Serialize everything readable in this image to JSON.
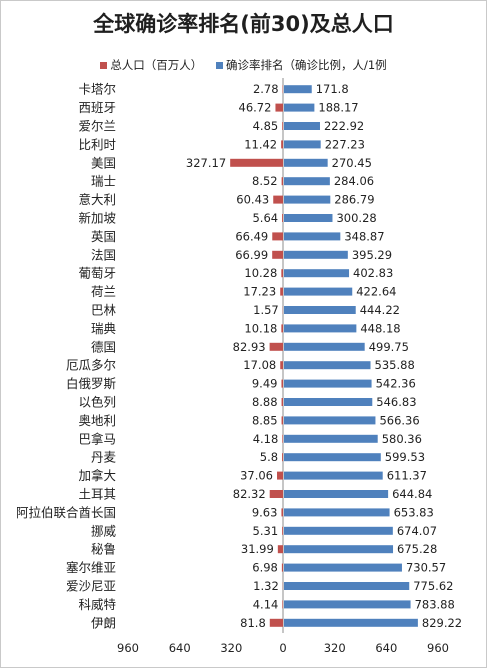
{
  "chart_data": {
    "type": "bar",
    "title": "全球确诊率排名(前30)及总人口",
    "legend": [
      {
        "name": "总人口（百万人）",
        "color": "#c0504d"
      },
      {
        "name": "确诊率排名（确诊比例，人/1例",
        "color": "#4f81bd"
      }
    ],
    "categories": [
      "卡塔尔",
      "西班牙",
      "爱尔兰",
      "比利时",
      "美国",
      "瑞士",
      "意大利",
      "新加坡",
      "英国",
      "法国",
      "葡萄牙",
      "荷兰",
      "巴林",
      "瑞典",
      "德国",
      "厄瓜多尔",
      "白俄罗斯",
      "以色列",
      "奥地利",
      "巴拿马",
      "丹麦",
      "加拿大",
      "土耳其",
      "阿拉伯联合酋长国",
      "挪威",
      "秘鲁",
      "塞尔维亚",
      "爱沙尼亚",
      "科威特",
      "伊朗"
    ],
    "series": [
      {
        "name": "总人口（百万人）",
        "color": "#c0504d",
        "direction": "left",
        "values": [
          2.78,
          46.72,
          4.85,
          11.42,
          327.17,
          8.52,
          60.43,
          5.64,
          66.49,
          66.99,
          10.28,
          17.23,
          1.57,
          10.18,
          82.93,
          17.08,
          9.49,
          8.88,
          8.85,
          4.18,
          5.8,
          37.06,
          82.32,
          9.63,
          5.31,
          31.99,
          6.98,
          1.32,
          4.14,
          81.8
        ]
      },
      {
        "name": "确诊率排名（确诊比例，人/1例",
        "color": "#4f81bd",
        "direction": "right",
        "values": [
          171.8,
          188.17,
          222.92,
          227.23,
          270.45,
          284.06,
          286.79,
          300.28,
          348.87,
          395.29,
          402.83,
          422.64,
          444.22,
          448.18,
          499.75,
          535.88,
          542.36,
          546.83,
          566.36,
          580.36,
          599.53,
          611.37,
          644.84,
          653.83,
          674.07,
          675.28,
          730.57,
          775.62,
          783.88,
          829.22
        ]
      }
    ],
    "x_ticks": [
      "960",
      "640",
      "320",
      "0",
      "320",
      "640",
      "960"
    ],
    "xlim": [
      -960,
      960
    ],
    "grid": false,
    "legend_position": "top"
  }
}
